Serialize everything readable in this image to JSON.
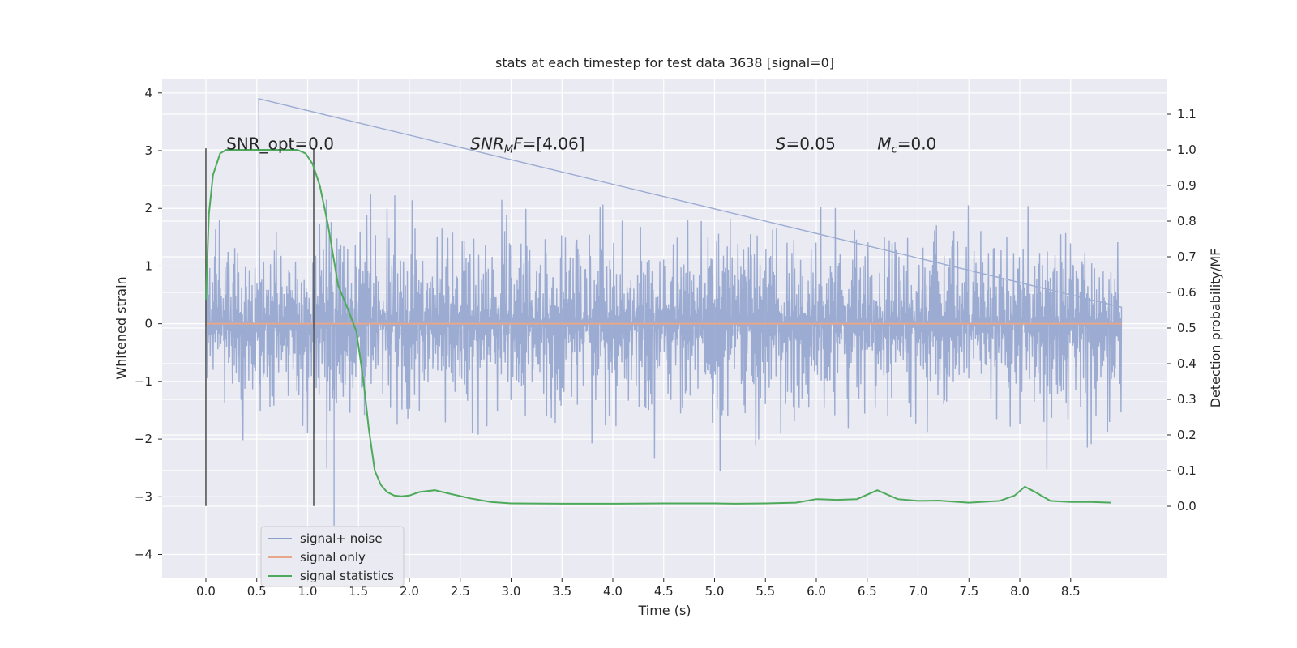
{
  "chart_data": {
    "type": "line",
    "title": "stats at each timestep for test data 3638 [signal=0]",
    "xlabel": "Time (s)",
    "ylabel_left": "Whitened strain",
    "ylabel_right": "Detection probability/MF",
    "xlim": [
      -0.43,
      9.45
    ],
    "ylim_left": [
      -4.4,
      4.25
    ],
    "ylim_right": [
      -0.2,
      1.2
    ],
    "xticks": [
      "0.0",
      "0.5",
      "1.0",
      "1.5",
      "2.0",
      "2.5",
      "3.0",
      "3.5",
      "4.0",
      "4.5",
      "5.0",
      "5.5",
      "6.0",
      "6.5",
      "7.0",
      "7.5",
      "8.0",
      "8.5"
    ],
    "yticks_left": [
      "4",
      "3",
      "2",
      "1",
      "0",
      "−1",
      "−2",
      "−3",
      "−4"
    ],
    "yticks_right": [
      "1.1",
      "1.0",
      "0.9",
      "0.8",
      "0.7",
      "0.6",
      "0.5",
      "0.4",
      "0.3",
      "0.2",
      "0.1",
      "0.0"
    ],
    "annotations": [
      {
        "plain": "SNR_opt=0.0"
      },
      {
        "base": "SNR",
        "sub": "M",
        "after": "F",
        "value": "=[4.06]"
      },
      {
        "base": "S",
        "value": "=0.05"
      },
      {
        "base": "M",
        "sub": "c",
        "value": "=0.0"
      }
    ],
    "markers": [
      0.0,
      1.06
    ],
    "series": [
      {
        "name": "signal+ noise",
        "color": "#8da0cb",
        "kind": "noise",
        "x_range": [
          0.0,
          9.0
        ],
        "typical_amplitude": 1.8,
        "peak_max": 3.9,
        "peak_min": -3.5
      },
      {
        "name": "signal only",
        "color": "#e8a68a",
        "kind": "constant",
        "x_range": [
          0.0,
          9.0
        ],
        "value": 0.0
      },
      {
        "name": "signal statistics",
        "color": "#4daa5a",
        "axis": "right",
        "x": [
          0.0,
          0.03,
          0.07,
          0.14,
          0.2,
          0.3,
          0.4,
          0.5,
          0.6,
          0.7,
          0.8,
          0.9,
          0.98,
          1.05,
          1.12,
          1.2,
          1.3,
          1.4,
          1.48,
          1.55,
          1.6,
          1.66,
          1.72,
          1.78,
          1.85,
          1.92,
          2.0,
          2.1,
          2.25,
          2.4,
          2.6,
          2.8,
          3.0,
          3.5,
          4.0,
          4.5,
          5.0,
          5.2,
          5.5,
          5.8,
          6.0,
          6.2,
          6.4,
          6.6,
          6.8,
          7.0,
          7.2,
          7.5,
          7.8,
          7.95,
          8.05,
          8.15,
          8.3,
          8.5,
          8.7,
          8.9
        ],
        "y": [
          0.58,
          0.82,
          0.93,
          0.99,
          1.0,
          1.0,
          1.0,
          1.0,
          1.0,
          1.0,
          1.0,
          1.0,
          0.99,
          0.96,
          0.9,
          0.79,
          0.62,
          0.55,
          0.49,
          0.35,
          0.22,
          0.1,
          0.06,
          0.04,
          0.03,
          0.028,
          0.03,
          0.04,
          0.045,
          0.035,
          0.022,
          0.012,
          0.008,
          0.007,
          0.007,
          0.008,
          0.008,
          0.007,
          0.008,
          0.01,
          0.02,
          0.018,
          0.02,
          0.045,
          0.02,
          0.015,
          0.016,
          0.01,
          0.015,
          0.03,
          0.055,
          0.04,
          0.015,
          0.012,
          0.012,
          0.01
        ]
      }
    ],
    "legend_position": "lower-left"
  }
}
